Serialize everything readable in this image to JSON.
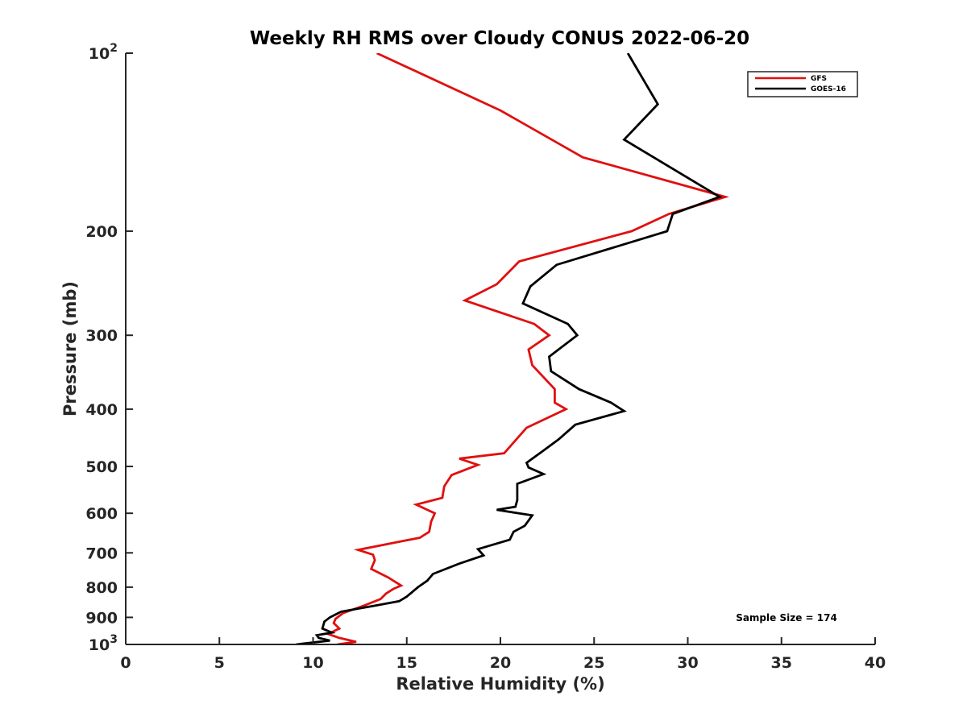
{
  "chart_data": {
    "type": "line",
    "title": "Weekly RH RMS over Cloudy CONUS 2022-06-20",
    "xlabel": "Relative Humidity (%)",
    "ylabel": "Pressure (mb)",
    "xlim": [
      0,
      40
    ],
    "ylim": [
      100,
      1000
    ],
    "y_scale": "log",
    "y_reversed": true,
    "grid": false,
    "legend_position": "top-right",
    "x_ticks": [
      "0",
      "5",
      "10",
      "15",
      "20",
      "25",
      "30",
      "35",
      "40"
    ],
    "y_ticks": [
      {
        "value": 100,
        "base": "10",
        "exp": "2"
      },
      {
        "value": 200,
        "label": "200"
      },
      {
        "value": 300,
        "label": "300"
      },
      {
        "value": 400,
        "label": "400"
      },
      {
        "value": 500,
        "label": "500"
      },
      {
        "value": 600,
        "label": "600"
      },
      {
        "value": 700,
        "label": "700"
      },
      {
        "value": 800,
        "label": "800"
      },
      {
        "value": 900,
        "label": "900"
      },
      {
        "value": 1000,
        "base": "10",
        "exp": "3"
      }
    ],
    "annotation": "Sample Size = 174",
    "series": [
      {
        "name": "GFS",
        "color": "#e01010",
        "points": [
          [
            13.4,
            100
          ],
          [
            20.0,
            125
          ],
          [
            24.4,
            150
          ],
          [
            32.0,
            175
          ],
          [
            29.0,
            187
          ],
          [
            27.0,
            200
          ],
          [
            21.0,
            225
          ],
          [
            19.8,
            246
          ],
          [
            18.1,
            262
          ],
          [
            21.8,
            287
          ],
          [
            22.6,
            300
          ],
          [
            21.5,
            317
          ],
          [
            21.7,
            337
          ],
          [
            22.9,
            370
          ],
          [
            22.9,
            390
          ],
          [
            23.5,
            400
          ],
          [
            21.4,
            430
          ],
          [
            20.2,
            475
          ],
          [
            17.8,
            485
          ],
          [
            18.8,
            497
          ],
          [
            17.4,
            517
          ],
          [
            17.0,
            540
          ],
          [
            16.9,
            565
          ],
          [
            15.5,
            580
          ],
          [
            16.5,
            600
          ],
          [
            16.3,
            620
          ],
          [
            16.2,
            645
          ],
          [
            15.7,
            660
          ],
          [
            12.4,
            692
          ],
          [
            13.2,
            705
          ],
          [
            13.3,
            720
          ],
          [
            13.1,
            745
          ],
          [
            14.0,
            770
          ],
          [
            14.7,
            795
          ],
          [
            14.3,
            805
          ],
          [
            13.9,
            820
          ],
          [
            13.6,
            838
          ],
          [
            12.7,
            860
          ],
          [
            11.6,
            885
          ],
          [
            11.2,
            905
          ],
          [
            11.1,
            920
          ],
          [
            11.4,
            940
          ],
          [
            10.8,
            960
          ],
          [
            11.4,
            975
          ],
          [
            12.3,
            990
          ],
          [
            11.3,
            1000
          ]
        ]
      },
      {
        "name": "GOES-16",
        "color": "#000000",
        "points": [
          [
            26.8,
            100
          ],
          [
            28.4,
            122
          ],
          [
            26.6,
            140
          ],
          [
            31.7,
            175
          ],
          [
            29.2,
            187
          ],
          [
            28.9,
            200
          ],
          [
            23.0,
            228
          ],
          [
            21.6,
            248
          ],
          [
            21.2,
            265
          ],
          [
            23.6,
            287
          ],
          [
            24.1,
            300
          ],
          [
            22.6,
            326
          ],
          [
            22.7,
            345
          ],
          [
            24.2,
            370
          ],
          [
            25.9,
            390
          ],
          [
            26.6,
            403
          ],
          [
            24.0,
            425
          ],
          [
            23.1,
            450
          ],
          [
            22.3,
            470
          ],
          [
            21.4,
            493
          ],
          [
            21.5,
            502
          ],
          [
            22.3,
            515
          ],
          [
            20.9,
            535
          ],
          [
            20.9,
            570
          ],
          [
            20.8,
            585
          ],
          [
            19.8,
            592
          ],
          [
            21.7,
            605
          ],
          [
            21.3,
            630
          ],
          [
            20.7,
            645
          ],
          [
            20.5,
            665
          ],
          [
            18.8,
            690
          ],
          [
            19.1,
            707
          ],
          [
            17.8,
            730
          ],
          [
            16.4,
            760
          ],
          [
            16.1,
            780
          ],
          [
            15.6,
            800
          ],
          [
            15.0,
            830
          ],
          [
            14.6,
            845
          ],
          [
            13.3,
            860
          ],
          [
            11.5,
            880
          ],
          [
            10.9,
            900
          ],
          [
            10.6,
            915
          ],
          [
            10.5,
            940
          ],
          [
            11.0,
            955
          ],
          [
            10.2,
            965
          ],
          [
            10.3,
            975
          ],
          [
            10.9,
            985
          ],
          [
            9.1,
            1000
          ]
        ]
      }
    ]
  }
}
